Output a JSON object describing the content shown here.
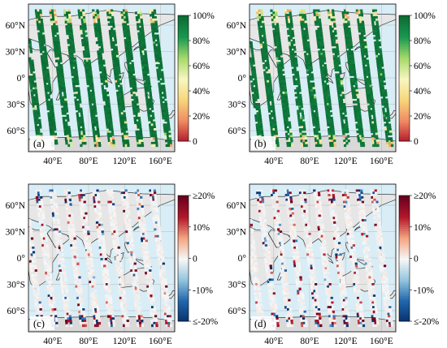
{
  "chart_data": [
    {
      "type": "heatmap",
      "panel_label": "(a)",
      "title": "",
      "x_ticks": [
        "40°E",
        "80°E",
        "120°E",
        "160°E"
      ],
      "y_ticks": [
        "60°N",
        "30°N",
        "0°",
        "30°S",
        "60°S"
      ],
      "xlim_deg_east": [
        13,
        176
      ],
      "ylim_deg": [
        -84,
        84
      ],
      "colorbar": {
        "ticks": [
          "100%",
          "80%",
          "60%",
          "40%",
          "20%",
          "0"
        ],
        "range": [
          0,
          100
        ],
        "colors": [
          "#b2182b",
          "#ef8a62",
          "#f7d67a",
          "#f7f7c0",
          "#a6d96a",
          "#1a9850",
          "#0b6b33"
        ]
      },
      "pattern": "diagonal orbit swaths, values mostly 90-100%",
      "swath_count": 10,
      "typical_value": 97,
      "colors": {
        "ocean": "#d8edf6",
        "land": "#e6e6e6",
        "antarctica": "#d9d9d9",
        "coast": "#1a1a1a"
      }
    },
    {
      "type": "heatmap",
      "panel_label": "(b)",
      "title": "",
      "x_ticks": [
        "40°E",
        "80°E",
        "120°E",
        "160°E"
      ],
      "y_ticks": [
        "60°N",
        "30°N",
        "0°",
        "30°S",
        "60°S"
      ],
      "xlim_deg_east": [
        13,
        176
      ],
      "ylim_deg": [
        -84,
        84
      ],
      "colorbar": {
        "ticks": [
          "100%",
          "80%",
          "60%",
          "40%",
          "20%",
          "0"
        ],
        "range": [
          0,
          100
        ],
        "colors": [
          "#b2182b",
          "#ef8a62",
          "#f7d67a",
          "#f7f7c0",
          "#a6d96a",
          "#1a9850",
          "#0b6b33"
        ]
      },
      "pattern": "diagonal orbit swaths, values mostly 90-100%",
      "swath_count": 10,
      "typical_value": 96,
      "colors": {
        "ocean": "#d8edf6",
        "land": "#e6e6e6",
        "antarctica": "#d9d9d9",
        "coast": "#1a1a1a"
      }
    },
    {
      "type": "heatmap",
      "panel_label": "(c)",
      "title": "",
      "x_ticks": [
        "40°E",
        "80°E",
        "120°E",
        "160°E"
      ],
      "y_ticks": [
        "60°N",
        "30°N",
        "0°",
        "30°S",
        "60°S"
      ],
      "xlim_deg_east": [
        13,
        176
      ],
      "ylim_deg": [
        -84,
        84
      ],
      "colorbar": {
        "ticks": [
          "≥20%",
          "10%",
          "0",
          "-10%",
          "≤-20%"
        ],
        "range": [
          -20,
          20
        ],
        "colors": [
          "#08306b",
          "#2166ac",
          "#92c5de",
          "#f7f7f7",
          "#f4a582",
          "#b2182b",
          "#67001f"
        ]
      },
      "pattern": "diagonal orbit swaths of differences, mostly near 0% with sparse positive and negative outliers",
      "swath_count": 10,
      "typical_value": 0,
      "colors": {
        "ocean": "#d8edf6",
        "land": "#e6e6e6",
        "antarctica": "#d9d9d9",
        "coast": "#1a1a1a"
      }
    },
    {
      "type": "heatmap",
      "panel_label": "(d)",
      "title": "",
      "x_ticks": [
        "40°E",
        "80°E",
        "120°E",
        "160°E"
      ],
      "y_ticks": [
        "60°N",
        "30°N",
        "0°",
        "30°S",
        "60°S"
      ],
      "xlim_deg_east": [
        13,
        176
      ],
      "ylim_deg": [
        -84,
        84
      ],
      "colorbar": {
        "ticks": [
          "≥20%",
          "10%",
          "0",
          "-10%",
          "≤-20%"
        ],
        "range": [
          -20,
          20
        ],
        "colors": [
          "#08306b",
          "#2166ac",
          "#92c5de",
          "#f7f7f7",
          "#f4a582",
          "#b2182b",
          "#67001f"
        ]
      },
      "pattern": "diagonal orbit swaths of differences, mostly near 0% with sparse positive and negative outliers",
      "swath_count": 10,
      "typical_value": 0,
      "colors": {
        "ocean": "#d8edf6",
        "land": "#e6e6e6",
        "antarctica": "#d9d9d9",
        "coast": "#1a1a1a"
      }
    }
  ]
}
